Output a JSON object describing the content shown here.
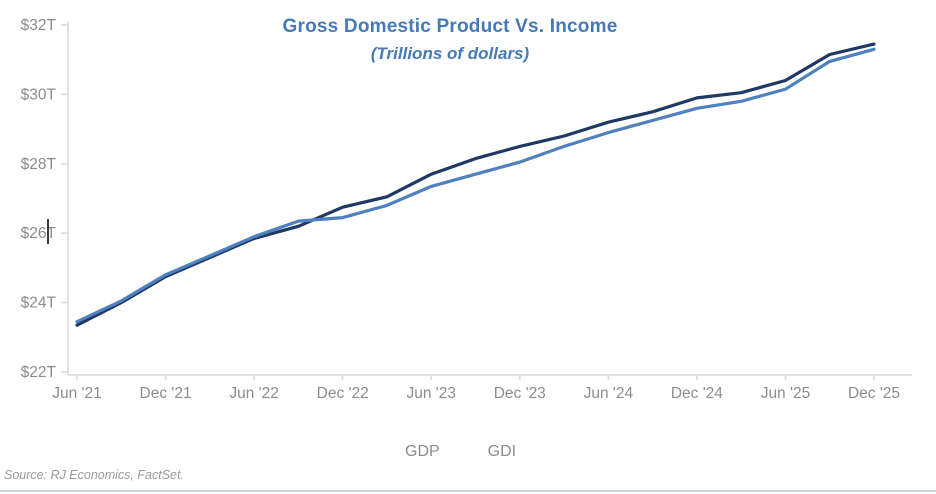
{
  "title": "Gross Domestic Product Vs. Income",
  "subtitle": "(Trillions of dollars)",
  "source_note": "Source: RJ Economics, FactSet.",
  "legend": {
    "gdp_label": "GDP",
    "gdi_label": "GDI"
  },
  "colors": {
    "title_text": "#4579B8",
    "gdp_line": "#1F3864",
    "gdi_line": "#4E81BD",
    "axis_text": "#8C8C8C",
    "axis_line": "#D9D9D9",
    "legend_text": "#8C8C8C"
  },
  "chart_data": {
    "type": "line",
    "title": "Gross Domestic Product Vs. Income",
    "subtitle": "(Trillions of dollars)",
    "y_unit": "trillions of dollars",
    "ylim": [
      22,
      32
    ],
    "y_tick_values": [
      22,
      24,
      26,
      28,
      30,
      32
    ],
    "y_tick_labels": [
      "$22T",
      "$24T",
      "$26T",
      "$28T",
      "$30T",
      "$32T"
    ],
    "x_tick_labels": [
      "Jun '21",
      "Dec '21",
      "Jun '22",
      "Dec '22",
      "Jun '23",
      "Dec '23",
      "Jun '24",
      "Dec '24",
      "Jun '25",
      "Dec '25"
    ],
    "grid": false,
    "legend_position": "bottom",
    "categories": [
      "Jun '21",
      "Sep '21",
      "Dec '21",
      "Mar '22",
      "Jun '22",
      "Sep '22",
      "Dec '22",
      "Mar '23",
      "Jun '23",
      "Sep '23",
      "Dec '23",
      "Mar '24",
      "Jun '24",
      "Sep '24",
      "Dec '24",
      "Mar '25",
      "Jun '25",
      "Sep '25",
      "Dec '25"
    ],
    "series": [
      {
        "name": "GDP",
        "color": "#1F3864",
        "values": [
          23.35,
          24.0,
          24.75,
          25.3,
          25.85,
          26.2,
          26.75,
          27.05,
          27.7,
          28.15,
          28.5,
          28.8,
          29.2,
          29.5,
          29.9,
          30.05,
          30.4,
          31.15,
          31.45
        ]
      },
      {
        "name": "GDI",
        "color": "#4E81BD",
        "values": [
          23.45,
          24.05,
          24.8,
          25.35,
          25.9,
          26.35,
          26.45,
          26.8,
          27.35,
          27.7,
          28.05,
          28.5,
          28.9,
          29.25,
          29.6,
          29.8,
          30.15,
          30.95,
          31.3
        ]
      }
    ]
  }
}
